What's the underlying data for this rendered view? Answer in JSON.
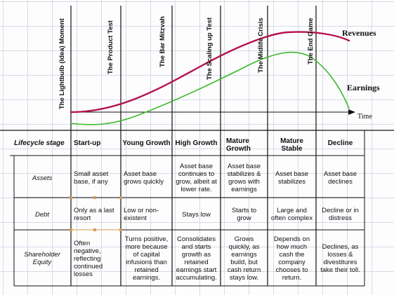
{
  "stages": [
    "The Lightbulb (Idea) Moment",
    "The Product Test",
    "The Bar Mitzvah",
    "The Scaling up Test",
    "The Midlife Crisis",
    "The End Game"
  ],
  "curves": {
    "revenues": "Revenues",
    "earnings": "Earnings",
    "time": "Time"
  },
  "colors": {
    "revenues": "#b5124f",
    "earnings": "#3fb72f",
    "axis": "#111111",
    "connector": "#d59a55"
  },
  "table": {
    "header_row_label": "Lifecycle stage",
    "columns": [
      "Start-up",
      "Young Growth",
      "High Growth",
      "Mature\nGrowth",
      "Mature\nStable",
      "Decline"
    ],
    "rows": [
      {
        "label": "Assets",
        "cells": [
          "Small asset\nbase, if any",
          "Asset base\ngrows quickly",
          "Asset base\ncontinues to\ngrow, albeit at\nlower rate.",
          "Asset base\nstabilizes &\ngrows with\nearnings",
          "Asset base\nstabilizes",
          "Asset base\ndeclines"
        ]
      },
      {
        "label": "Debt",
        "cells": [
          "Only as a last\nresort",
          "Low or non-\nexistent",
          "Stays low",
          "Starts to\ngrow",
          "Large and\noften complex",
          "Decline or in\ndistress"
        ]
      },
      {
        "label": "Shareholder\nEquity",
        "cells": [
          "Often\nnegative,\nreflecting\ncontinued\nlosses",
          "Turns positive,\nmore because\nof capital\ninfusions than\nretained\nearnings.",
          "Consolidates\nand starts\ngrowth as\nretained\nearnings start\naccumulating.",
          "Grows\nquickly, as\nearnings\nbuild, but\ncash return\nstays low.",
          "Depends on\nhow much\ncash the\ncompany\nchooses to\nreturn.",
          "Declines, as\nlosses &\ndivestitures\ntake their toll."
        ]
      }
    ]
  }
}
